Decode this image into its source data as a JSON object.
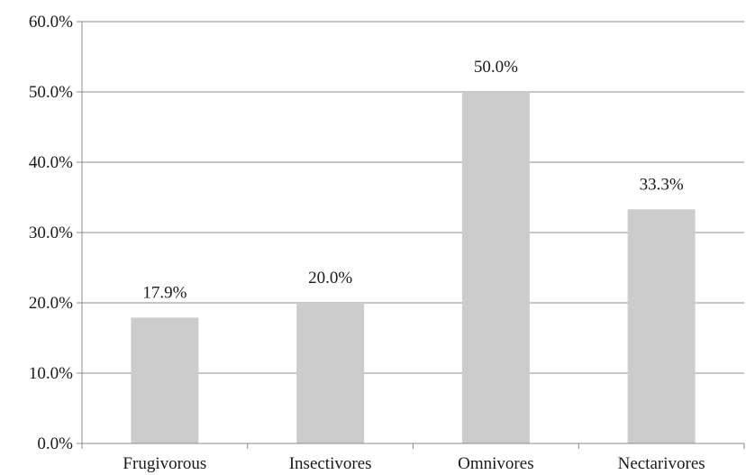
{
  "chart_data": {
    "type": "bar",
    "title": "",
    "xlabel": "",
    "ylabel": "",
    "categories": [
      "Frugivorous",
      "Insectivores",
      "Omnivores",
      "Nectarivores"
    ],
    "values": [
      17.9,
      20.0,
      50.0,
      33.3
    ],
    "value_labels": [
      "17.9%",
      "20.0%",
      "50.0%",
      "33.3%"
    ],
    "ylim": [
      0,
      60
    ],
    "yticks": [
      0,
      10,
      20,
      30,
      40,
      50,
      60
    ],
    "ytick_labels": [
      "0.0%",
      "10.0%",
      "20.0%",
      "30.0%",
      "40.0%",
      "50.0%",
      "60.0%"
    ],
    "grid": true,
    "legend": "none",
    "colors": {
      "bar": "#cccccc",
      "grid": "#8c8c8c",
      "axis": "#8c8c8c",
      "text": "#1a1a1a"
    }
  }
}
